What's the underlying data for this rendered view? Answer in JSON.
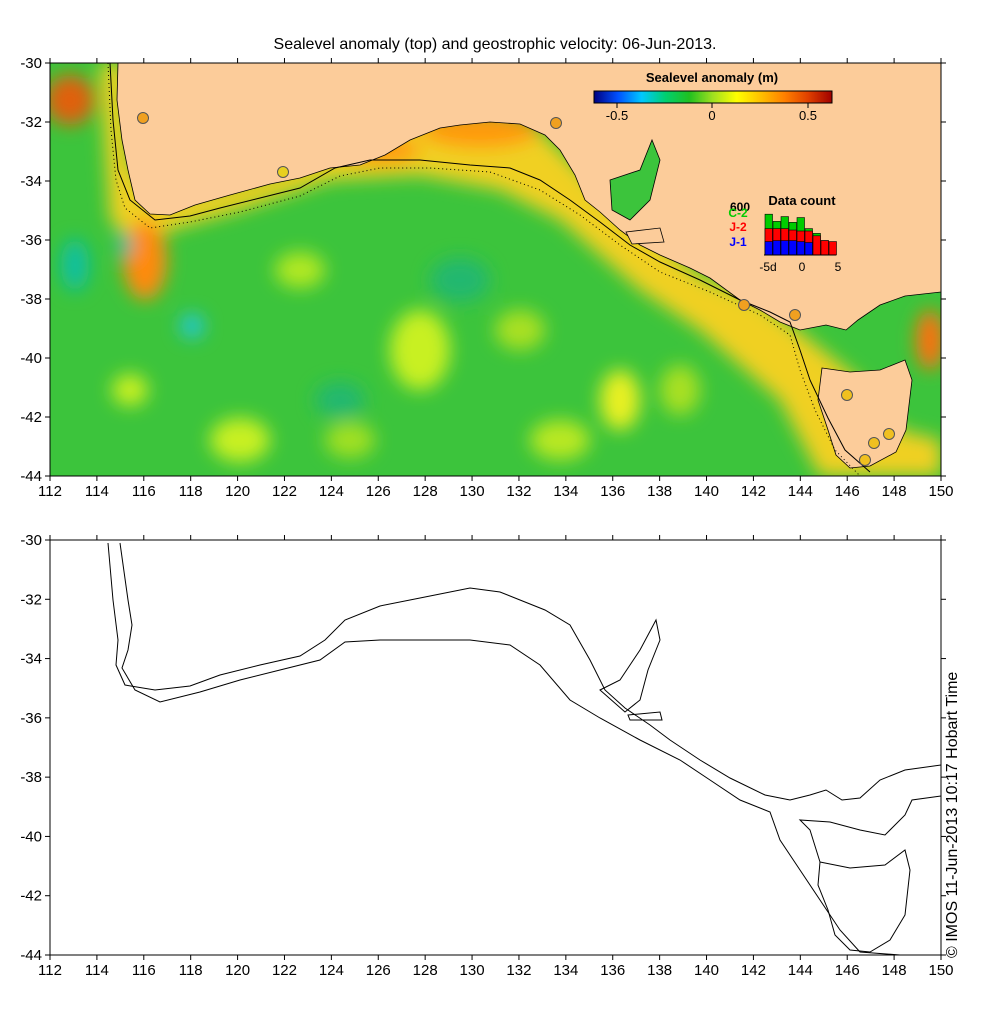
{
  "title": "Sealevel anomaly (top) and geostrophic velocity: 06-Jun-2013.",
  "axes": {
    "lon_ticks": [
      "112",
      "114",
      "116",
      "118",
      "120",
      "122",
      "124",
      "126",
      "128",
      "130",
      "132",
      "134",
      "136",
      "138",
      "140",
      "142",
      "144",
      "146",
      "148",
      "150"
    ],
    "lat_ticks": [
      "-30",
      "-32",
      "-34",
      "-36",
      "-38",
      "-40",
      "-42",
      "-44"
    ]
  },
  "colorbar": {
    "title": "Sealevel anomaly (m)",
    "tick_labels": [
      "-0.5",
      "0",
      "0.5"
    ],
    "colors": [
      "#000080",
      "#0050ff",
      "#00c8ff",
      "#00d070",
      "#20c020",
      "#a0e020",
      "#ffff00",
      "#ffc000",
      "#ff8000",
      "#e04000",
      "#a00000"
    ]
  },
  "data_count": {
    "title": "Data count",
    "max_label": "600",
    "series": [
      {
        "name": "C-2",
        "color": "#00cc00"
      },
      {
        "name": "J-2",
        "color": "#ff0000"
      },
      {
        "name": "J-1",
        "color": "#0000ff"
      }
    ],
    "x_labels": [
      "-5d",
      "0",
      "5"
    ],
    "bars_c2": [
      0.85,
      0.7,
      0.8,
      0.68,
      0.78,
      0.55,
      0.45,
      0.3,
      0.0
    ],
    "bars_j2": [
      0.55,
      0.55,
      0.55,
      0.52,
      0.5,
      0.5,
      0.4,
      0.3,
      0.28
    ],
    "bars_j1": [
      0.28,
      0.3,
      0.3,
      0.3,
      0.28,
      0.26,
      0.0,
      0.0,
      0.0
    ]
  },
  "colors": {
    "land": "#fccc9a",
    "ocean": "#3cc43c",
    "coast": "#000000"
  },
  "credit": "© IMOS 11-Jun-2013 10:17 Hobart Time"
}
